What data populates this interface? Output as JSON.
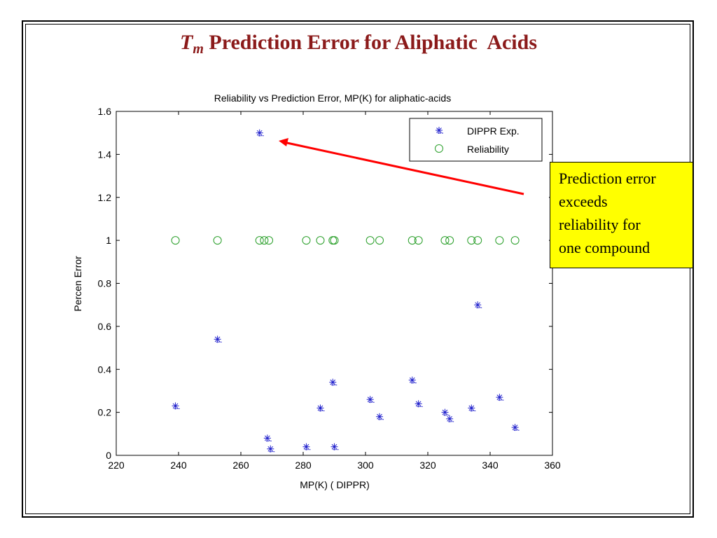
{
  "slide": {
    "title_symbol": "T",
    "title_subscript": "m",
    "title_rest": " Prediction Error for Aliphatic  Acids"
  },
  "callout": {
    "lines": [
      "Prediction error",
      "exceeds",
      "reliability for",
      "one compound"
    ],
    "background": "#ffff00"
  },
  "annotation_arrow_color": "#ff0000",
  "chart_data": {
    "type": "scatter",
    "title": "Reliability vs Prediction Error, MP(K) for aliphatic-acids",
    "xlabel": "MP(K) ( DIPPR)",
    "ylabel": "Percen Error",
    "xlim": [
      220,
      360
    ],
    "ylim": [
      0,
      1.6
    ],
    "x_ticks": [
      "220",
      "240",
      "260",
      "280",
      "300",
      "320",
      "340",
      "360"
    ],
    "y_ticks": [
      "0",
      "0.2",
      "0.4",
      "0.6",
      "0.8",
      "1",
      "1.2",
      "1.4",
      "1.6"
    ],
    "grid": false,
    "legend_position": "top-right",
    "series": [
      {
        "name": "DIPPR Exp.",
        "marker": "star",
        "color": "#1f1fcc",
        "points": [
          [
            239,
            0.23
          ],
          [
            252.5,
            0.54
          ],
          [
            266,
            1.5
          ],
          [
            268.5,
            0.08
          ],
          [
            269.5,
            0.03
          ],
          [
            281,
            0.04
          ],
          [
            285.5,
            0.22
          ],
          [
            289.5,
            0.34
          ],
          [
            290,
            0.04
          ],
          [
            301.5,
            0.26
          ],
          [
            304.5,
            0.18
          ],
          [
            315,
            0.35
          ],
          [
            317,
            0.24
          ],
          [
            325.5,
            0.2
          ],
          [
            327,
            0.17
          ],
          [
            334,
            0.22
          ],
          [
            336,
            0.7
          ],
          [
            343,
            0.27
          ],
          [
            348,
            0.13
          ]
        ]
      },
      {
        "name": "Reliability",
        "marker": "circle",
        "color": "#2ca02c",
        "points": [
          [
            239,
            1
          ],
          [
            252.5,
            1
          ],
          [
            266,
            1
          ],
          [
            267.5,
            1
          ],
          [
            269,
            1
          ],
          [
            281,
            1
          ],
          [
            285.5,
            1
          ],
          [
            289.5,
            1
          ],
          [
            290,
            1
          ],
          [
            301.5,
            1
          ],
          [
            304.5,
            1
          ],
          [
            315,
            1
          ],
          [
            317,
            1
          ],
          [
            325.5,
            1
          ],
          [
            327,
            1
          ],
          [
            334,
            1
          ],
          [
            336,
            1
          ],
          [
            343,
            1
          ],
          [
            348,
            1
          ]
        ]
      }
    ]
  }
}
